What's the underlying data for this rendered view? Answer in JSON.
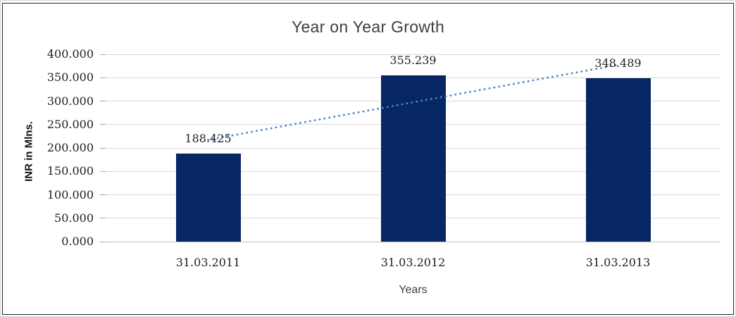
{
  "chart_data": {
    "type": "bar",
    "title": "Year on Year Growth",
    "xlabel": "Years",
    "ylabel": "INR in Mlns.",
    "categories": [
      "31.03.2011",
      "31.03.2012",
      "31.03.2013"
    ],
    "values": [
      188.425,
      355.239,
      348.489
    ],
    "data_labels": [
      "188.425",
      "355.239",
      "348.489"
    ],
    "ylim": [
      0,
      400
    ],
    "ytick_step": 50,
    "ytick_labels": [
      "0.000",
      "50.000",
      "100.000",
      "150.000",
      "200.000",
      "250.000",
      "300.000",
      "350.000",
      "400.000"
    ],
    "grid": true,
    "legend_position": "none",
    "trendline": {
      "style": "dotted",
      "start_value": 217.352,
      "end_value": 377.416,
      "color": "#4e87c8"
    },
    "colors": {
      "bar": "#062664",
      "gridline": "#d9d9d9",
      "zero_line": "#bfbfbf",
      "tick_text": "#1f1f1f",
      "title_text": "#404040"
    }
  }
}
